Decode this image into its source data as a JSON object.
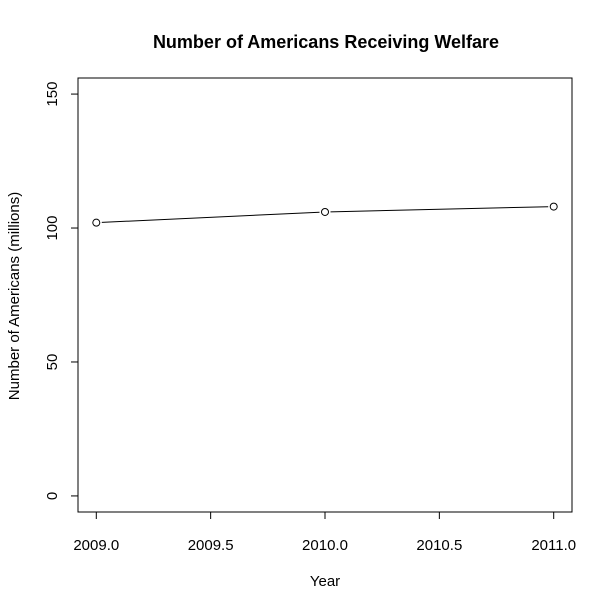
{
  "chart_data": {
    "type": "line",
    "title": "Number of Americans Receiving Welfare",
    "xlabel": "Year",
    "ylabel": "Number of Americans (millions)",
    "x": [
      2009.0,
      2010.0,
      2011.0
    ],
    "series": [
      {
        "values": [
          102,
          106,
          108
        ],
        "line_color": "#000000",
        "marker": "open-circle"
      }
    ],
    "xlim": [
      2008.92,
      2011.08
    ],
    "ylim": [
      -6,
      156
    ],
    "xticks": [
      2009.0,
      2009.5,
      2010.0,
      2010.5,
      2011.0
    ],
    "xtick_labels": [
      "2009.0",
      "2009.5",
      "2010.0",
      "2010.5",
      "2011.0"
    ],
    "yticks": [
      0,
      50,
      100,
      150
    ],
    "ytick_labels": [
      "0",
      "50",
      "100",
      "150"
    ],
    "grid": false,
    "legend": "none"
  }
}
